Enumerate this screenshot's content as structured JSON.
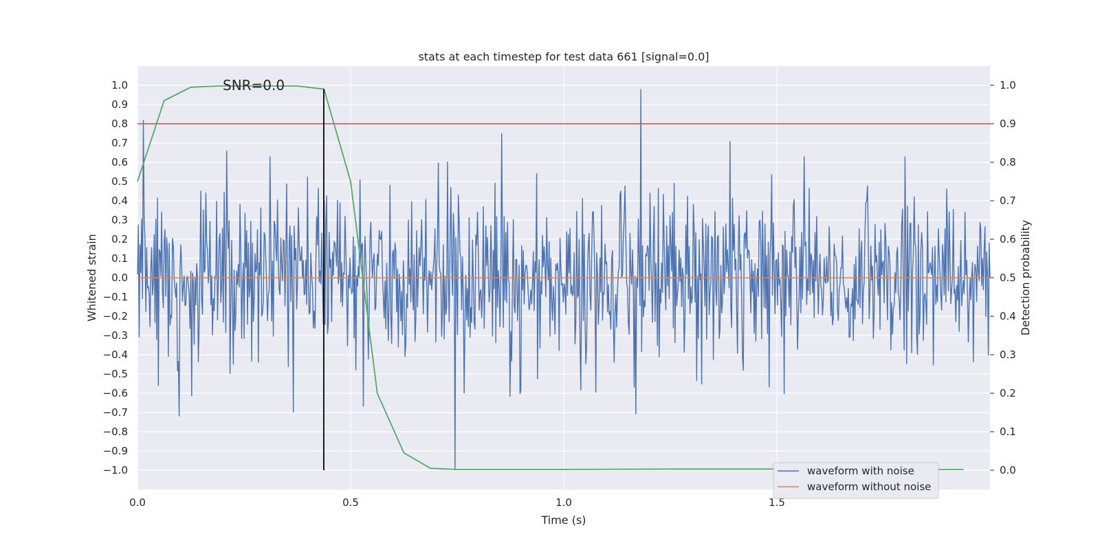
{
  "chart_data": {
    "type": "line",
    "title": "stats at each timestep for test data 661 [signal=0.0]",
    "xlabel": "Time (s)",
    "ylabel_left": "Whitened strain",
    "ylabel_right": "Detection probability",
    "xlim": [
      0.0,
      2.0
    ],
    "ylim_left": [
      -1.1,
      1.1
    ],
    "ylim_right": [
      -0.05,
      1.05
    ],
    "x_ticks": [
      "0.0",
      "0.5",
      "1.0",
      "1.5"
    ],
    "x_tick_values": [
      0.0,
      0.5,
      1.0,
      1.5
    ],
    "y_ticks_left": [
      "1.0",
      "0.9",
      "0.8",
      "0.7",
      "0.6",
      "0.5",
      "0.4",
      "0.3",
      "0.2",
      "0.1",
      "0.0",
      "−0.1",
      "−0.2",
      "−0.3",
      "−0.4",
      "−0.5",
      "−0.6",
      "−0.7",
      "−0.8",
      "−0.9",
      "−1.0"
    ],
    "y_tick_values_left": [
      1.0,
      0.9,
      0.8,
      0.7,
      0.6,
      0.5,
      0.4,
      0.3,
      0.2,
      0.1,
      0.0,
      -0.1,
      -0.2,
      -0.3,
      -0.4,
      -0.5,
      -0.6,
      -0.7,
      -0.8,
      -0.9,
      -1.0
    ],
    "y_ticks_right": [
      "1.0",
      "0.9",
      "0.8",
      "0.7",
      "0.6",
      "0.5",
      "0.4",
      "0.3",
      "0.2",
      "0.1",
      "0.0"
    ],
    "y_tick_values_right": [
      1.0,
      0.9,
      0.8,
      0.7,
      0.6,
      0.5,
      0.4,
      0.3,
      0.2,
      0.1,
      0.0
    ],
    "grid": true,
    "annotation": "SNR=0.0",
    "annotation_x": 0.2,
    "annotation_y": 1.0,
    "vline_x": 0.437,
    "vline_ymin": -1.0,
    "vline_ymax": 0.98,
    "threshold_right": 0.9,
    "noise_series": {
      "name": "waveform with noise",
      "color": "#4c72b0",
      "x_start": 0.0,
      "x_end": 2.0,
      "n_points": 1024,
      "amplitude_sd": 0.22,
      "peaks": [
        {
          "x": 0.013,
          "y": 0.82
        },
        {
          "x": 0.098,
          "y": -0.72
        },
        {
          "x": 0.21,
          "y": 0.66
        },
        {
          "x": 0.31,
          "y": 0.63
        },
        {
          "x": 0.365,
          "y": -0.7
        },
        {
          "x": 0.53,
          "y": -0.67
        },
        {
          "x": 0.745,
          "y": -1.0
        },
        {
          "x": 0.855,
          "y": 0.75
        },
        {
          "x": 1.17,
          "y": -0.71
        },
        {
          "x": 1.18,
          "y": 0.98
        },
        {
          "x": 1.39,
          "y": 0.71
        },
        {
          "x": 1.565,
          "y": 0.63
        },
        {
          "x": 1.8,
          "y": 0.63
        }
      ]
    },
    "clean_series": {
      "name": "waveform without noise",
      "color": "#dd8452",
      "value": 0.0
    },
    "probability_series": {
      "name": "",
      "color": "#55a868",
      "x": [
        0.0,
        0.0625,
        0.125,
        0.1875,
        0.25,
        0.3125,
        0.375,
        0.4375,
        0.5,
        0.5625,
        0.625,
        0.6875,
        0.75,
        0.8125,
        0.875,
        1.0,
        1.25,
        1.5,
        1.75,
        1.9375
      ],
      "y": [
        0.75,
        0.96,
        0.995,
        0.998,
        0.998,
        0.998,
        0.998,
        0.99,
        0.75,
        0.2,
        0.045,
        0.005,
        0.002,
        0.002,
        0.002,
        0.002,
        0.003,
        0.003,
        0.002,
        0.002
      ]
    },
    "threshold_color": "#c44e52",
    "legend": {
      "position": "lower-right",
      "entries": [
        "waveform with noise",
        "waveform without noise"
      ]
    }
  }
}
